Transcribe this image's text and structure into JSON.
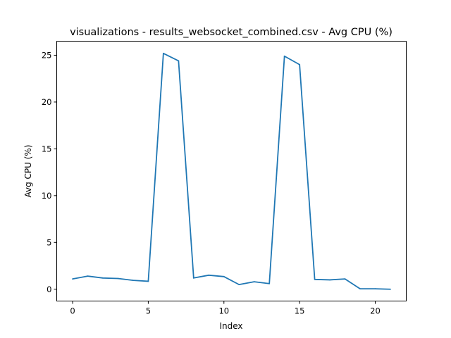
{
  "chart_data": {
    "type": "line",
    "title": "visualizations - results_websocket_combined.csv - Avg CPU (%)",
    "xlabel": "Index",
    "ylabel": "Avg CPU (%)",
    "xlim": [
      -1.05,
      22.05
    ],
    "ylim": [
      -1.26,
      26.5
    ],
    "xticks": [
      0,
      5,
      10,
      15,
      20
    ],
    "yticks": [
      0,
      5,
      10,
      15,
      20,
      25
    ],
    "grid": false,
    "legend": "none",
    "series": [
      {
        "color": "#1f77b4",
        "x": [
          0,
          1,
          2,
          3,
          4,
          5,
          6,
          7,
          8,
          9,
          10,
          11,
          12,
          13,
          14,
          15,
          16,
          17,
          18,
          19,
          20,
          21
        ],
        "values": [
          1.1,
          1.4,
          1.2,
          1.15,
          0.95,
          0.85,
          25.2,
          24.4,
          1.2,
          1.5,
          1.35,
          0.5,
          0.8,
          0.6,
          24.9,
          24.0,
          1.05,
          1.0,
          1.1,
          0.05,
          0.05,
          0.0
        ]
      }
    ]
  }
}
